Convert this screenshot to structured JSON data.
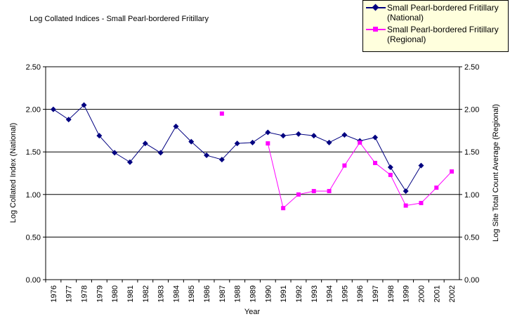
{
  "chart_data": {
    "type": "line",
    "title": "Log Collated Indices - Small Pearl-bordered Fritillary",
    "x_label": "Year",
    "y_label": "Log Collated Index (National)",
    "y2_label": "Log Site Total Count Average (Regional)",
    "categories": [
      "1976",
      "1977",
      "1978",
      "1979",
      "1980",
      "1981",
      "1982",
      "1983",
      "1984",
      "1985",
      "1986",
      "1987",
      "1988",
      "1989",
      "1990",
      "1991",
      "1992",
      "1993",
      "1994",
      "1995",
      "1996",
      "1997",
      "1998",
      "1999",
      "2000",
      "2001",
      "2002"
    ],
    "series": [
      {
        "name": "Small Pearl-bordered Fritillary (National)",
        "color": "#000080",
        "marker": "diamond",
        "values": [
          2.0,
          1.88,
          2.05,
          1.69,
          1.49,
          1.38,
          1.6,
          1.49,
          1.8,
          1.62,
          1.46,
          1.41,
          1.6,
          1.61,
          1.73,
          1.69,
          1.71,
          1.69,
          1.61,
          1.7,
          1.63,
          1.67,
          1.32,
          1.04,
          1.34,
          null,
          null
        ]
      },
      {
        "name": "Small Pearl-bordered Fritillary (Regional)",
        "color": "#ff00ff",
        "marker": "square",
        "axis": "y2",
        "values": [
          null,
          null,
          null,
          null,
          null,
          null,
          null,
          null,
          null,
          null,
          null,
          1.95,
          null,
          null,
          1.6,
          0.84,
          1.0,
          1.04,
          1.04,
          1.34,
          1.61,
          1.37,
          1.23,
          0.87,
          0.9,
          1.08,
          1.27
        ]
      }
    ],
    "ylim": [
      0,
      2.5
    ],
    "yticks": [
      {
        "value": 0,
        "label": "0.00"
      },
      {
        "value": 0.5,
        "label": "0.50"
      },
      {
        "value": 1,
        "label": "1.00"
      },
      {
        "value": 1.5,
        "label": "1.50"
      },
      {
        "value": 2,
        "label": "2.00"
      },
      {
        "value": 2.5,
        "label": "2.50"
      }
    ],
    "y2lim": [
      0,
      2.5
    ],
    "y2ticks": [
      {
        "value": 0,
        "label": "0.00"
      },
      {
        "value": 0.5,
        "label": "0.50"
      },
      {
        "value": 1,
        "label": "1.00"
      },
      {
        "value": 1.5,
        "label": "1.50"
      },
      {
        "value": 2,
        "label": "2.00"
      },
      {
        "value": 2.5,
        "label": "2.50"
      }
    ],
    "grid": true,
    "legend": "top-right"
  }
}
